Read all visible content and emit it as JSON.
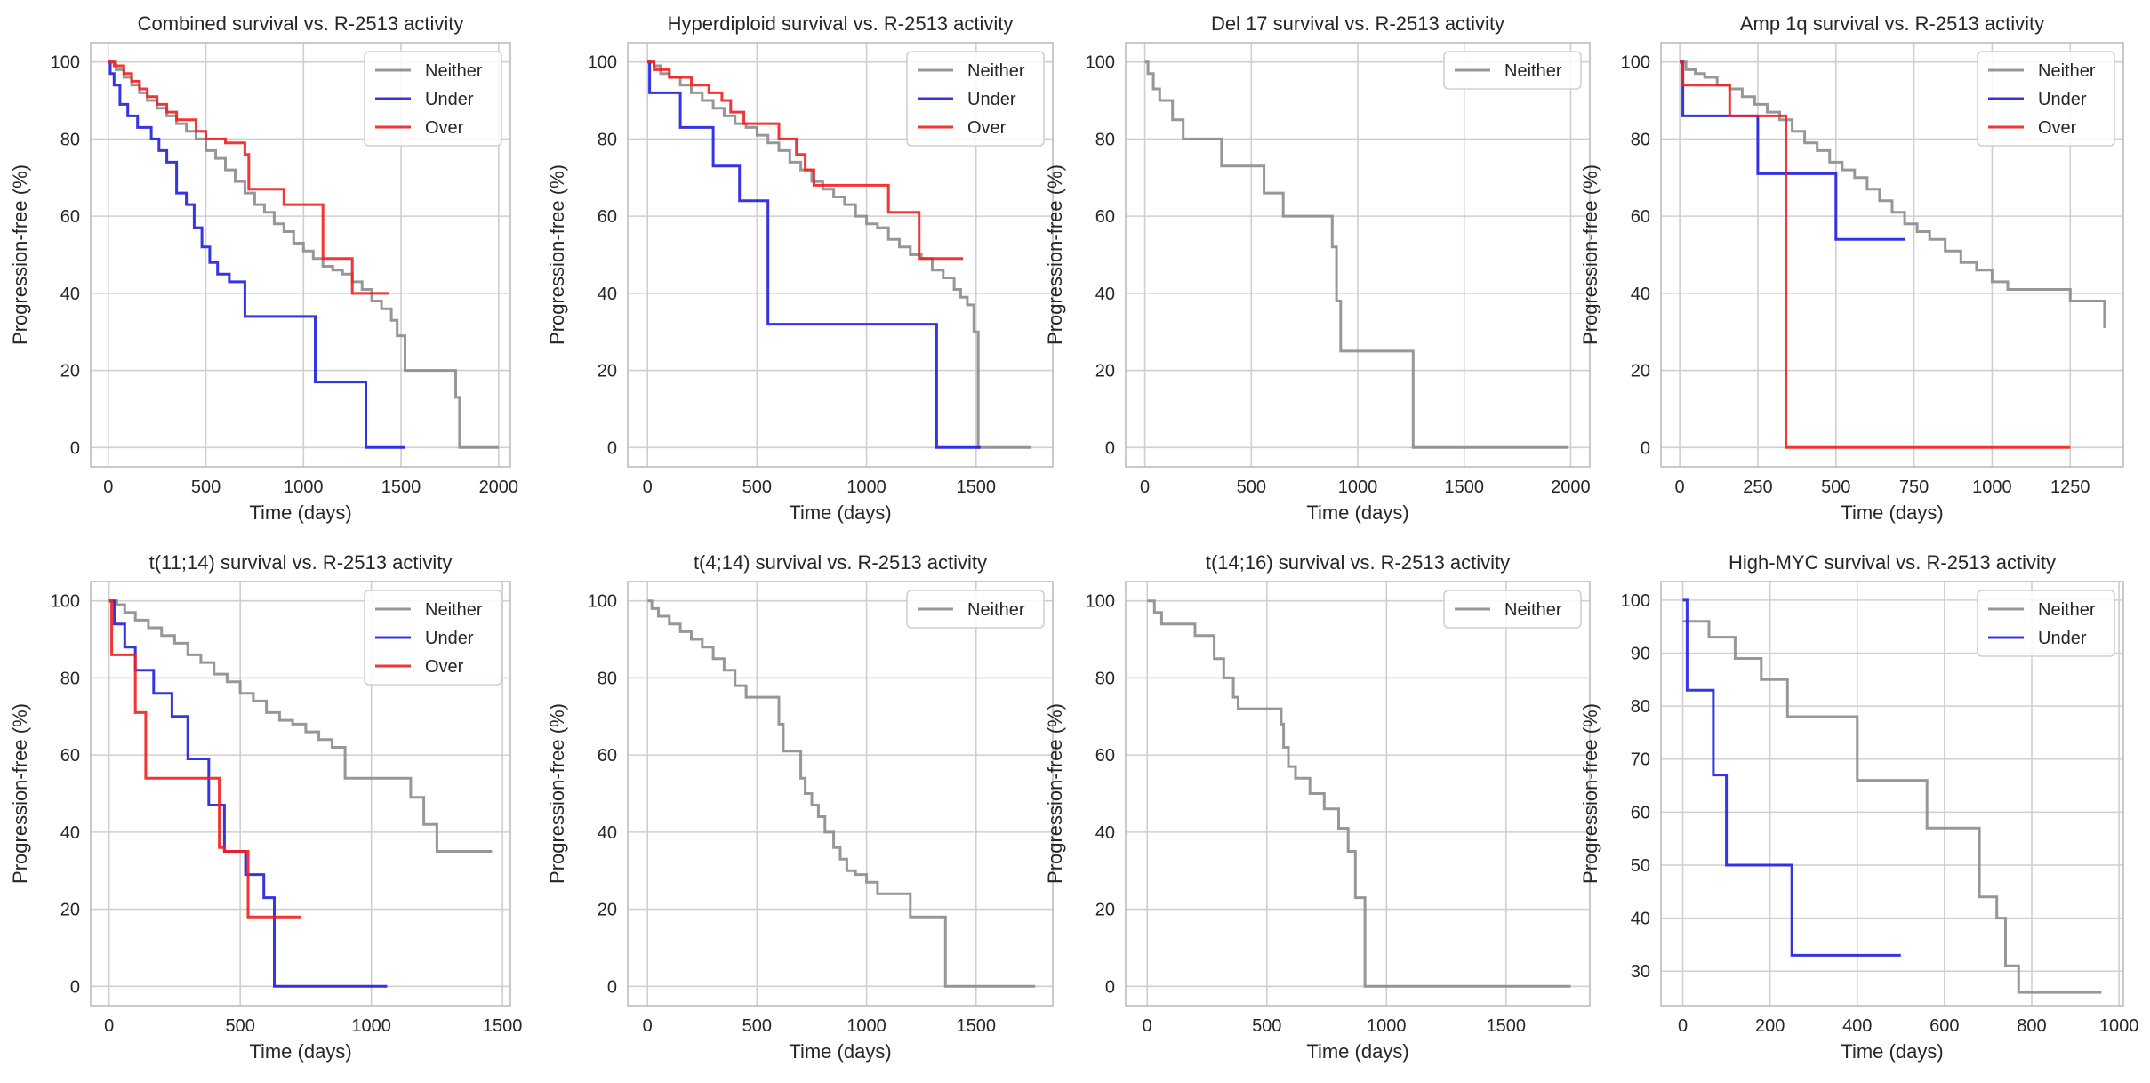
{
  "figure": {
    "background": "#ffffff"
  },
  "style": {
    "colors": {
      "Neither": "#8c8c8c",
      "Under": "#1f1fe0",
      "Over": "#f21f1f"
    },
    "grid": "#cfcfcf",
    "spine": "#bdbdbd",
    "text": "#262626"
  },
  "chart_data": [
    {
      "type": "line",
      "step": true,
      "title": "Combined survival vs. R-2513 activity",
      "xlabel": "Time (days)",
      "ylabel": "Progression-free (%)",
      "xlim": [
        -90,
        2060
      ],
      "ylim": [
        -5,
        105
      ],
      "xticks": [
        0,
        500,
        1000,
        1500,
        2000
      ],
      "yticks": [
        0,
        20,
        40,
        60,
        80,
        100
      ],
      "legend": {
        "location": "upper right",
        "entries": [
          "Neither",
          "Under",
          "Over"
        ]
      },
      "series": [
        {
          "name": "Neither",
          "x": [
            0,
            40,
            80,
            120,
            160,
            200,
            250,
            300,
            350,
            400,
            450,
            500,
            550,
            600,
            650,
            700,
            750,
            800,
            850,
            900,
            950,
            1000,
            1050,
            1100,
            1150,
            1200,
            1250,
            1300,
            1350,
            1400,
            1450,
            1480,
            1520,
            1550,
            1600,
            1650,
            1700,
            1760,
            1780,
            1800,
            1900,
            2000
          ],
          "y": [
            100,
            98,
            96,
            94,
            92,
            90,
            88,
            86,
            84,
            82,
            80,
            77,
            75,
            72,
            69,
            66,
            63,
            61,
            58,
            56,
            53,
            51,
            49,
            47,
            46,
            45,
            43,
            41,
            38,
            36,
            33,
            29,
            20,
            20,
            20,
            20,
            20,
            20,
            13,
            0,
            0,
            0
          ]
        },
        {
          "name": "Under",
          "x": [
            0,
            10,
            30,
            60,
            100,
            150,
            220,
            260,
            300,
            350,
            400,
            440,
            480,
            520,
            560,
            620,
            700,
            750,
            1000,
            1060,
            1100,
            1200,
            1320,
            1520
          ],
          "y": [
            100,
            97,
            94,
            89,
            86,
            83,
            80,
            77,
            74,
            66,
            63,
            57,
            52,
            48,
            45,
            43,
            34,
            34,
            34,
            17,
            17,
            17,
            0,
            0
          ]
        },
        {
          "name": "Over",
          "x": [
            0,
            30,
            80,
            120,
            160,
            200,
            250,
            300,
            350,
            450,
            500,
            550,
            600,
            700,
            720,
            900,
            1000,
            1050,
            1100,
            1150,
            1250,
            1300,
            1440
          ],
          "y": [
            100,
            99,
            97,
            95,
            93,
            91,
            89,
            87,
            85,
            82,
            80,
            80,
            79,
            76,
            67,
            63,
            63,
            63,
            49,
            49,
            40,
            40,
            40
          ]
        }
      ]
    },
    {
      "type": "line",
      "step": true,
      "title": "Hyperdiploid survival vs. R-2513 activity",
      "xlabel": "Time (days)",
      "ylabel": "Progression-free (%)",
      "xlim": [
        -90,
        1850
      ],
      "ylim": [
        -5,
        105
      ],
      "xticks": [
        0,
        500,
        1000,
        1500
      ],
      "yticks": [
        0,
        20,
        40,
        60,
        80,
        100
      ],
      "legend": {
        "location": "upper right",
        "entries": [
          "Neither",
          "Under",
          "Over"
        ]
      },
      "series": [
        {
          "name": "Neither",
          "x": [
            0,
            30,
            60,
            100,
            150,
            200,
            250,
            300,
            350,
            400,
            450,
            500,
            550,
            600,
            650,
            700,
            750,
            800,
            850,
            900,
            950,
            1000,
            1050,
            1100,
            1150,
            1200,
            1250,
            1300,
            1350,
            1400,
            1430,
            1460,
            1490,
            1510,
            1550,
            1750
          ],
          "y": [
            100,
            99,
            97,
            96,
            94,
            92,
            90,
            88,
            86,
            84,
            83,
            81,
            79,
            77,
            74,
            72,
            69,
            67,
            65,
            63,
            60,
            58,
            57,
            54,
            52,
            50,
            49,
            46,
            44,
            41,
            39,
            37,
            30,
            0,
            0,
            0
          ]
        },
        {
          "name": "Under",
          "x": [
            0,
            10,
            150,
            300,
            420,
            550,
            1320,
            1520
          ],
          "y": [
            100,
            92,
            83,
            73,
            64,
            32,
            0,
            0
          ]
        },
        {
          "name": "Over",
          "x": [
            0,
            30,
            100,
            200,
            280,
            340,
            380,
            440,
            540,
            600,
            680,
            720,
            760,
            800,
            900,
            1000,
            1100,
            1240,
            1440
          ],
          "y": [
            100,
            98,
            96,
            94,
            92,
            90,
            87,
            84,
            84,
            80,
            76,
            72,
            68,
            68,
            68,
            68,
            61,
            49,
            49
          ]
        }
      ]
    },
    {
      "type": "line",
      "step": true,
      "title": "Del 17 survival vs. R-2513 activity",
      "xlabel": "Time (days)",
      "ylabel": "Progression-free (%)",
      "xlim": [
        -90,
        2090
      ],
      "ylim": [
        -5,
        105
      ],
      "xticks": [
        0,
        500,
        1000,
        1500,
        2000
      ],
      "yticks": [
        0,
        20,
        40,
        60,
        80,
        100
      ],
      "legend": {
        "location": "upper right",
        "entries": [
          "Neither"
        ]
      },
      "series": [
        {
          "name": "Neither",
          "x": [
            0,
            15,
            40,
            70,
            130,
            180,
            360,
            560,
            650,
            880,
            900,
            920,
            1260,
            1990
          ],
          "y": [
            100,
            97,
            93,
            90,
            85,
            80,
            73,
            66,
            60,
            52,
            38,
            25,
            0,
            0
          ]
        }
      ]
    },
    {
      "type": "line",
      "step": true,
      "title": "Amp 1q survival vs. R-2513 activity",
      "xlabel": "Time (days)",
      "ylabel": "Progression-free (%)",
      "xlim": [
        -60,
        1420
      ],
      "ylim": [
        -5,
        105
      ],
      "xticks": [
        0,
        250,
        500,
        750,
        1000,
        1250
      ],
      "yticks": [
        0,
        20,
        40,
        60,
        80,
        100
      ],
      "legend": {
        "location": "upper right",
        "entries": [
          "Neither",
          "Under",
          "Over"
        ]
      },
      "series": [
        {
          "name": "Neither",
          "x": [
            0,
            20,
            50,
            80,
            120,
            160,
            200,
            240,
            280,
            320,
            360,
            400,
            440,
            480,
            520,
            560,
            600,
            640,
            680,
            720,
            760,
            800,
            850,
            900,
            950,
            1000,
            1050,
            1100,
            1150,
            1200,
            1250,
            1360
          ],
          "y": [
            100,
            98,
            97,
            96,
            94,
            93,
            91,
            89,
            87,
            85,
            82,
            79,
            77,
            74,
            72,
            70,
            67,
            64,
            61,
            58,
            56,
            54,
            51,
            48,
            46,
            43,
            41,
            41,
            41,
            41,
            38,
            31
          ]
        },
        {
          "name": "Under",
          "x": [
            0,
            10,
            200,
            250,
            500,
            720
          ],
          "y": [
            100,
            86,
            86,
            71,
            54,
            54
          ]
        },
        {
          "name": "Over",
          "x": [
            0,
            10,
            160,
            340,
            1250
          ],
          "y": [
            100,
            94,
            86,
            0,
            0
          ]
        }
      ]
    },
    {
      "type": "line",
      "step": true,
      "title": "t(11;14) survival vs. R-2513 activity",
      "xlabel": "Time (days)",
      "ylabel": "Progression-free (%)",
      "xlim": [
        -70,
        1530
      ],
      "ylim": [
        -5,
        105
      ],
      "xticks": [
        0,
        500,
        1000,
        1500
      ],
      "yticks": [
        0,
        20,
        40,
        60,
        80,
        100
      ],
      "legend": {
        "location": "upper right",
        "entries": [
          "Neither",
          "Under",
          "Over"
        ]
      },
      "series": [
        {
          "name": "Neither",
          "x": [
            0,
            30,
            60,
            100,
            150,
            200,
            250,
            300,
            350,
            400,
            450,
            500,
            550,
            600,
            650,
            700,
            750,
            800,
            850,
            900,
            1000,
            1100,
            1150,
            1200,
            1250,
            1460
          ],
          "y": [
            100,
            99,
            97,
            95,
            93,
            91,
            89,
            86,
            84,
            81,
            79,
            76,
            74,
            71,
            69,
            68,
            66,
            64,
            62,
            54,
            54,
            54,
            49,
            42,
            35,
            35
          ]
        },
        {
          "name": "Under",
          "x": [
            0,
            20,
            60,
            100,
            170,
            240,
            300,
            380,
            440,
            520,
            590,
            630,
            1060
          ],
          "y": [
            100,
            94,
            88,
            82,
            76,
            70,
            59,
            47,
            35,
            29,
            23,
            0,
            0
          ]
        },
        {
          "name": "Over",
          "x": [
            0,
            10,
            100,
            140,
            420,
            440,
            530,
            730
          ],
          "y": [
            100,
            86,
            71,
            54,
            36,
            35,
            18,
            18
          ]
        }
      ]
    },
    {
      "type": "line",
      "step": true,
      "title": "t(4;14) survival vs. R-2513 activity",
      "xlabel": "Time (days)",
      "ylabel": "Progression-free (%)",
      "xlim": [
        -90,
        1850
      ],
      "ylim": [
        -5,
        105
      ],
      "xticks": [
        0,
        500,
        1000,
        1500
      ],
      "yticks": [
        0,
        20,
        40,
        60,
        80,
        100
      ],
      "legend": {
        "location": "upper right",
        "entries": [
          "Neither"
        ]
      },
      "series": [
        {
          "name": "Neither",
          "x": [
            0,
            20,
            50,
            100,
            150,
            200,
            250,
            300,
            350,
            400,
            450,
            600,
            620,
            700,
            720,
            750,
            780,
            810,
            850,
            880,
            910,
            950,
            1000,
            1050,
            1100,
            1150,
            1200,
            1360,
            1770
          ],
          "y": [
            100,
            98,
            96,
            94,
            92,
            90,
            88,
            85,
            82,
            78,
            75,
            68,
            61,
            54,
            50,
            47,
            44,
            40,
            36,
            33,
            30,
            29,
            27,
            24,
            24,
            24,
            18,
            0,
            0
          ]
        }
      ]
    },
    {
      "type": "line",
      "step": true,
      "title": "t(14;16) survival vs. R-2513 activity",
      "xlabel": "Time (days)",
      "ylabel": "Progression-free (%)",
      "xlim": [
        -90,
        1850
      ],
      "ylim": [
        -5,
        105
      ],
      "xticks": [
        0,
        500,
        1000,
        1500
      ],
      "yticks": [
        0,
        20,
        40,
        60,
        80,
        100
      ],
      "legend": {
        "location": "upper right",
        "entries": [
          "Neither"
        ]
      },
      "series": [
        {
          "name": "Neither",
          "x": [
            0,
            30,
            60,
            200,
            280,
            320,
            360,
            380,
            560,
            570,
            590,
            620,
            680,
            740,
            800,
            840,
            870,
            910,
            1770
          ],
          "y": [
            100,
            97,
            94,
            91,
            85,
            80,
            75,
            72,
            68,
            62,
            57,
            54,
            50,
            46,
            41,
            35,
            23,
            0,
            0
          ]
        }
      ]
    },
    {
      "type": "line",
      "step": true,
      "title": "High-MYC survival vs. R-2513 activity",
      "xlabel": "Time (days)",
      "ylabel": "Progression-free (%)",
      "xlim": [
        -50,
        1010
      ],
      "ylim": [
        23.5,
        103.5
      ],
      "xticks": [
        0,
        200,
        400,
        600,
        800,
        1000
      ],
      "yticks": [
        30,
        40,
        50,
        60,
        70,
        80,
        90,
        100
      ],
      "legend": {
        "location": "upper right",
        "entries": [
          "Neither",
          "Under"
        ]
      },
      "series": [
        {
          "name": "Neither",
          "x": [
            0,
            60,
            120,
            180,
            240,
            400,
            560,
            680,
            720,
            740,
            770,
            960
          ],
          "y": [
            96,
            93,
            89,
            85,
            78,
            66,
            57,
            44,
            40,
            31,
            26,
            26
          ]
        },
        {
          "name": "Under",
          "x": [
            0,
            10,
            70,
            100,
            250,
            500
          ],
          "y": [
            100,
            83,
            67,
            50,
            33,
            33
          ]
        }
      ]
    }
  ]
}
